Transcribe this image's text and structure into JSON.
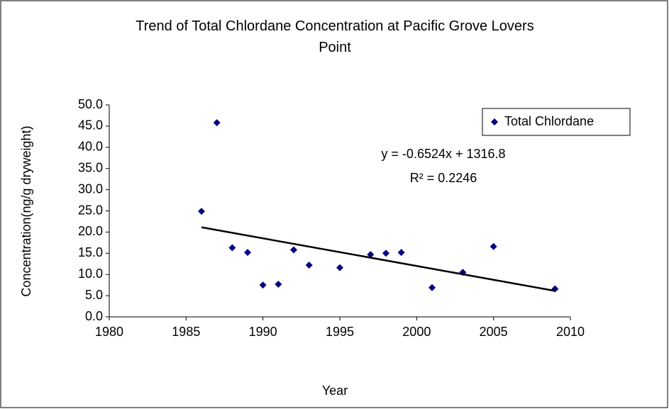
{
  "chart_data": {
    "type": "scatter",
    "title": "Trend of Total Chlordane Concentration at Pacific Grove Lovers Point",
    "x_label": "Year",
    "y_label": "Concentration(ng/g dryweight)",
    "series": [
      {
        "name": "Total Chlordane",
        "color": "#000080",
        "x": [
          1986,
          1987,
          1988,
          1989,
          1990,
          1991,
          1992,
          1993,
          1995,
          1997,
          1998,
          1999,
          2001,
          2003,
          2005,
          2009
        ],
        "values": [
          24.9,
          45.8,
          16.3,
          15.2,
          7.5,
          7.7,
          15.8,
          12.2,
          11.6,
          14.7,
          15.0,
          15.2,
          6.9,
          10.5,
          16.6,
          6.6
        ]
      }
    ],
    "trendline": {
      "equation": "y = -0.6524x + 1316.8",
      "r_squared": "R² = 0.2246",
      "slope": -0.6524,
      "intercept": 1316.8,
      "color": "#000000"
    },
    "xlim": [
      1980,
      2010
    ],
    "xticks": [
      1980,
      1985,
      1990,
      1995,
      2000,
      2005,
      2010
    ],
    "ylim": [
      0,
      50
    ],
    "yticks": [
      {
        "value": 0,
        "label": "0.0"
      },
      {
        "value": 5,
        "label": "5.0"
      },
      {
        "value": 10,
        "label": "10.0"
      },
      {
        "value": 15,
        "label": "15.0"
      },
      {
        "value": 20,
        "label": "20.0"
      },
      {
        "value": 25,
        "label": "25.0"
      },
      {
        "value": 30,
        "label": "30.0"
      },
      {
        "value": 35,
        "label": "35.0"
      },
      {
        "value": 40,
        "label": "40.0"
      },
      {
        "value": 45,
        "label": "45.0"
      },
      {
        "value": 50,
        "label": "50.0"
      }
    ],
    "grid": false,
    "legend": "upper-right"
  }
}
